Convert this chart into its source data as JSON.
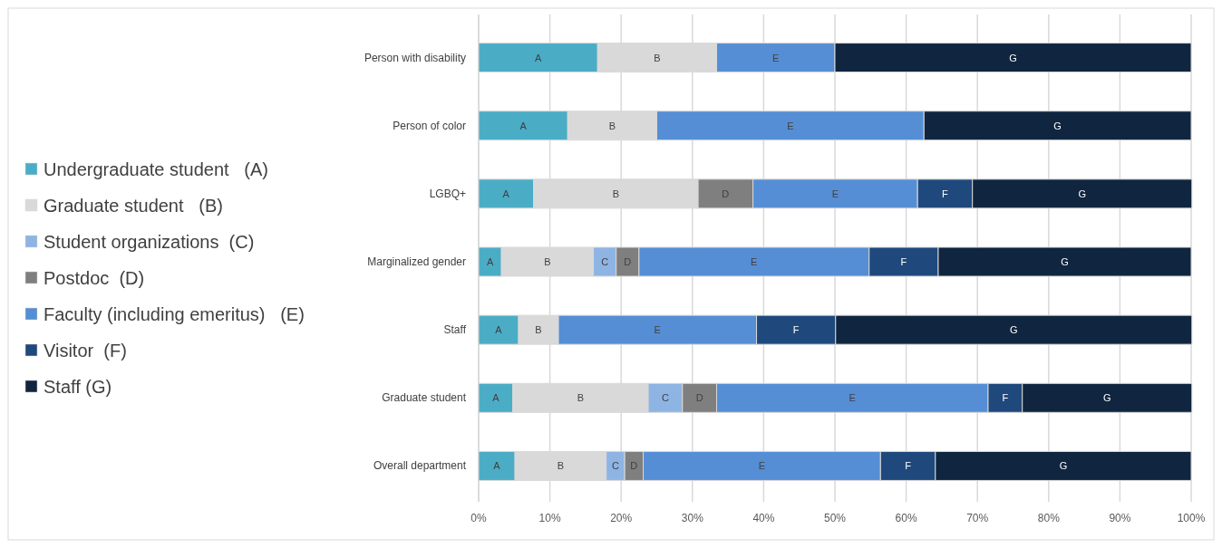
{
  "chart_data": {
    "type": "bar",
    "orientation": "horizontal",
    "stacked": true,
    "categories": [
      "Person with disability",
      "Person of color",
      "LGBQ+",
      "Marginalized gender",
      "Staff",
      "Graduate student",
      "Overall department"
    ],
    "series": [
      {
        "name": "Undergraduate student   (A)",
        "color": "#4bacc6",
        "values": [
          16.7,
          12.5,
          7.7,
          3.2,
          5.6,
          4.8,
          5.1
        ],
        "value_labels": [
          "A",
          "A",
          "A",
          "A",
          "A",
          "A",
          "A"
        ]
      },
      {
        "name": "Graduate student   (B)",
        "color": "#d9d9d9",
        "values": [
          16.7,
          12.5,
          23.1,
          12.9,
          5.6,
          19.0,
          12.8
        ],
        "value_labels": [
          "B",
          "B",
          "B",
          "B",
          "B",
          "B",
          "B"
        ]
      },
      {
        "name": "Student organizations  (C)",
        "color": "#8eb4e3",
        "values": [
          0,
          0,
          0,
          3.2,
          0,
          4.8,
          2.6
        ],
        "value_labels": [
          null,
          null,
          null,
          "C",
          null,
          "C",
          "C"
        ]
      },
      {
        "name": "Postdoc  (D)",
        "color": "#7f7f7f",
        "values": [
          0,
          0,
          7.7,
          3.2,
          0,
          4.8,
          2.6
        ],
        "value_labels": [
          null,
          null,
          "D",
          "D",
          null,
          "D",
          "D"
        ]
      },
      {
        "name": "Faculty (including emeritus)   (E)",
        "color": "#558ed5",
        "values": [
          16.6,
          37.5,
          23.1,
          32.3,
          27.8,
          38.1,
          33.3
        ],
        "value_labels": [
          "E",
          "E",
          "E",
          "E",
          "E",
          "E",
          "E"
        ]
      },
      {
        "name": "Visitor  (F)",
        "color": "#1f497d",
        "values": [
          0,
          0,
          7.7,
          9.7,
          11.1,
          4.8,
          7.7
        ],
        "value_labels": [
          null,
          null,
          "F",
          "F",
          "F",
          "F",
          "F"
        ]
      },
      {
        "name": "Staff (G)",
        "color": "#10253f",
        "values": [
          50,
          37.5,
          30.8,
          35.5,
          50,
          23.8,
          35.9
        ],
        "value_labels": [
          "G",
          "G",
          "G",
          "G",
          "G",
          "G",
          "G"
        ]
      }
    ],
    "xlim": [
      0,
      100
    ],
    "xticks": [
      {
        "value": 0,
        "label": "0%"
      },
      {
        "value": 10,
        "label": "10%"
      },
      {
        "value": 20,
        "label": "20%"
      },
      {
        "value": 30,
        "label": "30%"
      },
      {
        "value": 40,
        "label": "40%"
      },
      {
        "value": 50,
        "label": "50%"
      },
      {
        "value": 60,
        "label": "60%"
      },
      {
        "value": 70,
        "label": "70%"
      },
      {
        "value": 80,
        "label": "80%"
      },
      {
        "value": 90,
        "label": "90%"
      },
      {
        "value": 100,
        "label": "100%"
      }
    ],
    "grid": "x",
    "legend": "left"
  }
}
